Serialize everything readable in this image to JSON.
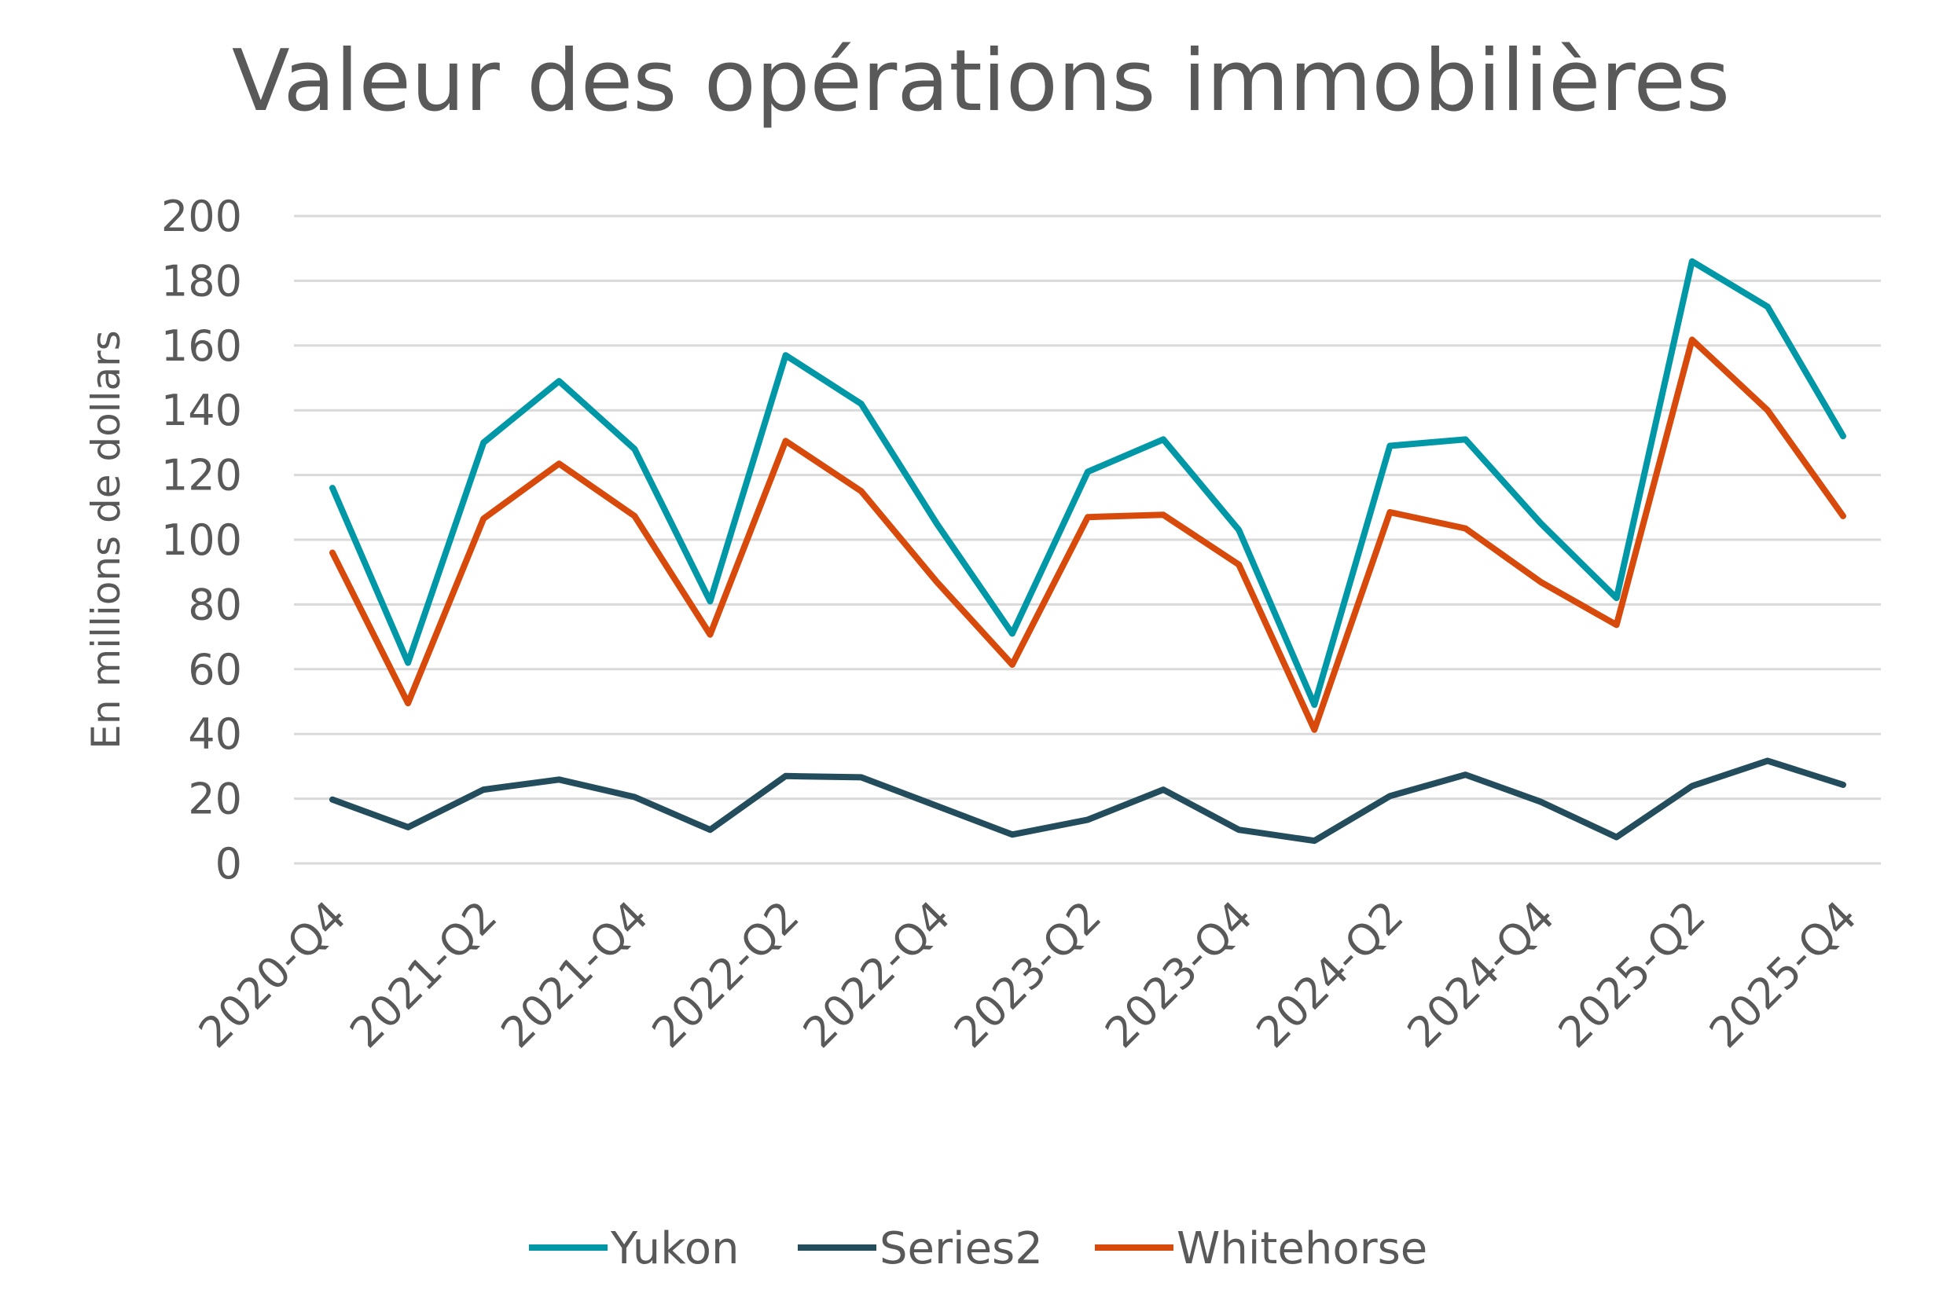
{
  "chart_data": {
    "type": "line",
    "title": "Valeur des opérations immobilières",
    "ylabel": "En millions de dollars",
    "xlabel": "",
    "ylim": [
      0,
      200
    ],
    "y_ticks": [
      "0",
      "20",
      "40",
      "60",
      "80",
      "100",
      "120",
      "140",
      "160",
      "180",
      "200"
    ],
    "x_tick_labels": [
      "2020-Q4",
      "2021-Q2",
      "2021-Q4",
      "2022-Q2",
      "2022-Q4",
      "2023-Q2",
      "2023-Q4",
      "2024-Q2",
      "2024-Q4",
      "2025-Q2",
      "2025-Q4"
    ],
    "grid": true,
    "legend_position": "bottom",
    "series": [
      {
        "name": "Yukon",
        "color": "#0097A7",
        "values": [
          116,
          62,
          130,
          149,
          128,
          81,
          157,
          142,
          105,
          71,
          121,
          131,
          103,
          49,
          129,
          131,
          105,
          82,
          186,
          172,
          132
        ]
      },
      {
        "name": "Series2",
        "color": "#234D5C",
        "values": [
          19.7,
          11.2,
          22.8,
          25.9,
          20.5,
          10.4,
          27,
          26.6,
          17.8,
          8.9,
          13.5,
          22.8,
          10.4,
          7,
          20.8,
          27.4,
          19,
          8.1,
          23.9,
          31.7,
          24.3
        ]
      },
      {
        "name": "Whitehorse",
        "color": "#D84A0B",
        "values": [
          96,
          49.5,
          106.5,
          123.5,
          107.3,
          70.7,
          130.5,
          115,
          87,
          61.4,
          107,
          107.7,
          92.3,
          41.3,
          108.5,
          103.5,
          86.9,
          73.7,
          161.8,
          140,
          107.3
        ]
      }
    ]
  }
}
